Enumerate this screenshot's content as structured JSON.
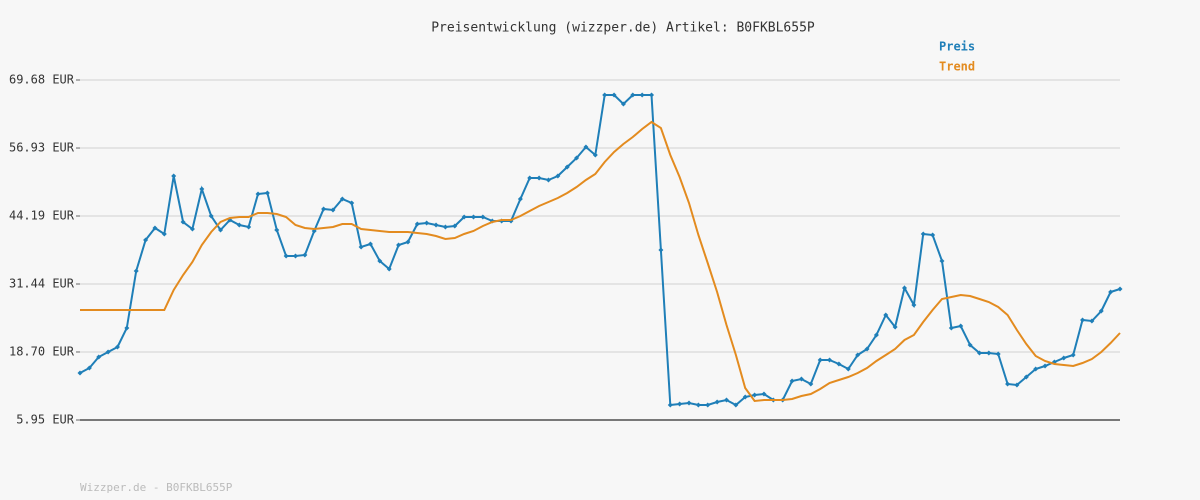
{
  "chart_data": {
    "type": "line",
    "title": "Preisentwicklung (wizzper.de) Artikel: B0FKBL655P",
    "footer": "Wizzper.de - B0FKBL655P",
    "ylim": [
      5.95,
      69.68
    ],
    "yticks": [
      {
        "value": 5.95,
        "label": "5.95 EUR"
      },
      {
        "value": 18.7,
        "label": "18.70 EUR"
      },
      {
        "value": 31.44,
        "label": "31.44 EUR"
      },
      {
        "value": 44.19,
        "label": "44.19 EUR"
      },
      {
        "value": 56.93,
        "label": "56.93 EUR"
      },
      {
        "value": 69.68,
        "label": "69.68 EUR"
      }
    ],
    "grid": true,
    "series": [
      {
        "name": "Preis",
        "color": "#1f7fb8",
        "markers": true,
        "values": [
          14.76,
          15.7,
          17.76,
          18.7,
          19.63,
          23.19,
          33.88,
          39.69,
          41.94,
          40.81,
          51.69,
          43.06,
          41.75,
          49.25,
          44.19,
          41.56,
          43.44,
          42.5,
          42.13,
          48.31,
          48.5,
          41.56,
          36.69,
          36.69,
          36.88,
          41.38,
          45.5,
          45.31,
          47.37,
          46.62,
          38.38,
          38.94,
          35.75,
          34.25,
          38.75,
          39.31,
          42.69,
          42.88,
          42.5,
          42.13,
          42.31,
          44.0,
          44.0,
          44.0,
          43.25,
          43.25,
          43.25,
          47.37,
          51.31,
          51.31,
          50.94,
          51.69,
          53.37,
          55.06,
          57.12,
          55.62,
          66.87,
          66.87,
          65.18,
          66.87,
          66.87,
          66.87,
          37.81,
          8.76,
          8.95,
          9.14,
          8.76,
          8.76,
          9.32,
          9.7,
          8.76,
          10.26,
          10.64,
          10.82,
          9.7,
          9.7,
          13.26,
          13.64,
          12.7,
          17.2,
          17.2,
          16.45,
          15.51,
          18.13,
          19.26,
          21.88,
          25.63,
          23.38,
          30.69,
          27.51,
          40.81,
          40.63,
          35.75,
          23.19,
          23.57,
          20.01,
          18.51,
          18.51,
          18.32,
          12.7,
          12.51,
          14.01,
          15.51,
          16.07,
          16.82,
          17.57,
          18.13,
          24.69,
          24.51,
          26.38,
          29.94,
          30.5
        ]
      },
      {
        "name": "Trend",
        "color": "#e38b1f",
        "markers": false,
        "values": [
          26.57,
          26.57,
          26.57,
          26.57,
          26.57,
          26.57,
          26.57,
          26.57,
          26.57,
          26.57,
          30.32,
          33.13,
          35.57,
          38.75,
          41.19,
          43.06,
          43.81,
          44.0,
          44.0,
          44.75,
          44.75,
          44.56,
          44.0,
          42.5,
          41.94,
          41.75,
          41.94,
          42.13,
          42.69,
          42.69,
          41.75,
          41.56,
          41.38,
          41.19,
          41.19,
          41.19,
          41.0,
          40.81,
          40.44,
          39.88,
          40.06,
          40.81,
          41.38,
          42.31,
          43.06,
          43.44,
          43.44,
          44.19,
          45.12,
          46.06,
          46.81,
          47.56,
          48.5,
          49.62,
          50.94,
          52.06,
          54.31,
          56.18,
          57.68,
          59.0,
          60.5,
          61.81,
          60.68,
          55.62,
          51.5,
          46.62,
          40.63,
          35.38,
          29.94,
          23.76,
          18.13,
          11.95,
          9.51,
          9.7,
          9.7,
          9.7,
          9.89,
          10.45,
          10.82,
          11.76,
          12.89,
          13.45,
          14.01,
          14.76,
          15.7,
          17.01,
          18.13,
          19.26,
          20.95,
          21.88,
          24.32,
          26.57,
          28.63,
          29.01,
          29.38,
          29.19,
          28.63,
          28.07,
          27.13,
          25.63,
          22.82,
          20.2,
          17.95,
          17.01,
          16.45,
          16.26,
          16.07,
          16.63,
          17.38,
          18.7,
          20.38,
          22.26
        ]
      }
    ]
  }
}
